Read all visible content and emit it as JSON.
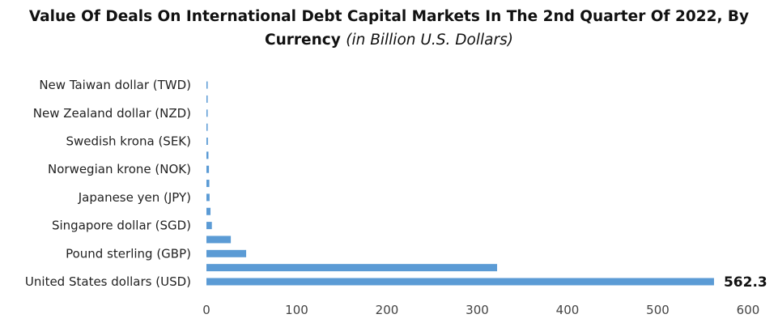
{
  "chart_data": {
    "type": "bar",
    "orientation": "horizontal",
    "title": "Value Of Deals On International Debt Capital Markets In The 2nd Quarter Of 2022, By Currency",
    "subtitle": "(in Billion U.S. Dollars)",
    "xlabel": "",
    "ylabel": "",
    "xlim": [
      0,
      600
    ],
    "ticks": [
      0,
      100,
      200,
      300,
      400,
      500,
      600
    ],
    "grid": false,
    "legend": "none",
    "bar_color": "#5B9BD5",
    "categories": [
      "United States dollars (USD)",
      "",
      "Pound sterling (GBP)",
      "",
      "Singapore dollar (SGD)",
      "",
      "Japanese yen (JPY)",
      "",
      "Norwegian krone (NOK)",
      "",
      "Swedish krona (SEK)",
      "",
      "New Zealand dollar (NZD)",
      "",
      "New Taiwan dollar (TWD)"
    ],
    "values": [
      562.3,
      322,
      44,
      27,
      6,
      4.5,
      3.5,
      3.2,
      2.8,
      2.2,
      1.6,
      1.3,
      1.1,
      0.9,
      0.7
    ],
    "data_labels": [
      {
        "index": 0,
        "text": "562.3"
      }
    ]
  }
}
